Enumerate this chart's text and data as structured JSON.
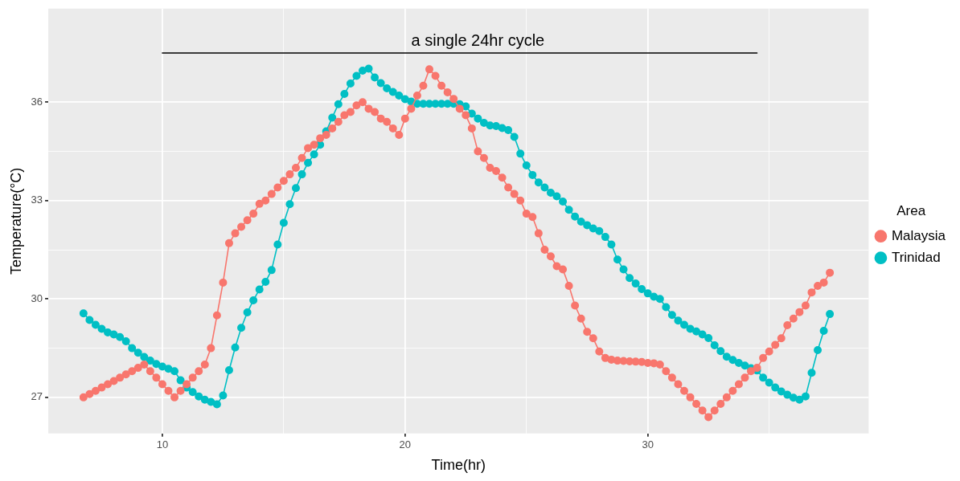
{
  "chart_data": {
    "type": "line",
    "xlabel": "Time(hr)",
    "ylabel": "Temperature(°C)",
    "legend_title": "Area",
    "legend": "right",
    "grid": true,
    "marker": "circle",
    "xlim": [
      5.3,
      39.1
    ],
    "ylim": [
      25.9,
      38.85
    ],
    "xticks": [
      10,
      {
        "value": 15,
        "label": null
      },
      20,
      {
        "value": 25,
        "label": null
      },
      30,
      {
        "value": 35,
        "label": null
      }
    ],
    "yticks": [
      27,
      {
        "value": 28.5,
        "label": null
      },
      30,
      {
        "value": 31.5,
        "label": null
      },
      33,
      {
        "value": 34.5,
        "label": null
      },
      36
    ],
    "x": [
      6.75,
      7,
      7.25,
      7.5,
      7.75,
      8,
      8.25,
      8.5,
      8.75,
      9,
      9.25,
      9.5,
      9.75,
      10,
      10.25,
      10.5,
      10.75,
      11,
      11.25,
      11.5,
      11.75,
      12,
      12.25,
      12.5,
      12.75,
      13,
      13.25,
      13.5,
      13.75,
      14,
      14.25,
      14.5,
      14.75,
      15,
      15.25,
      15.5,
      15.75,
      16,
      16.25,
      16.5,
      16.75,
      17,
      17.25,
      17.5,
      17.75,
      18,
      18.25,
      18.5,
      18.75,
      19,
      19.25,
      19.5,
      19.75,
      20,
      20.25,
      20.5,
      20.75,
      21,
      21.25,
      21.5,
      21.75,
      22,
      22.25,
      22.5,
      22.75,
      23,
      23.25,
      23.5,
      23.75,
      24,
      24.25,
      24.5,
      24.75,
      25,
      25.25,
      25.5,
      25.75,
      26,
      26.25,
      26.5,
      26.75,
      27,
      27.25,
      27.5,
      27.75,
      28,
      28.25,
      28.5,
      28.75,
      29,
      29.25,
      29.5,
      29.75,
      30,
      30.25,
      30.5,
      30.75,
      31,
      31.25,
      31.5,
      31.75,
      32,
      32.25,
      32.5,
      32.75,
      33,
      33.25,
      33.5,
      33.75,
      34,
      34.25,
      34.5,
      34.75,
      35,
      35.25,
      35.5,
      35.75,
      36,
      36.25,
      36.5,
      36.75,
      37,
      37.25,
      37.5
    ],
    "series": [
      {
        "name": "Malaysia",
        "color": "#f8766d",
        "values": [
          27.0,
          27.1,
          27.2,
          27.3,
          27.4,
          27.5,
          27.6,
          27.7,
          27.8,
          27.9,
          28.0,
          27.8,
          27.6,
          27.4,
          27.2,
          27.0,
          27.2,
          27.4,
          27.6,
          27.8,
          28.0,
          28.5,
          29.5,
          30.5,
          31.7,
          32.0,
          32.2,
          32.4,
          32.6,
          32.9,
          33.0,
          33.2,
          33.4,
          33.6,
          33.8,
          34.0,
          34.3,
          34.6,
          34.7,
          34.9,
          35.0,
          35.2,
          35.4,
          35.6,
          35.7,
          35.9,
          36.0,
          35.8,
          35.7,
          35.5,
          35.4,
          35.2,
          35.0,
          35.5,
          35.8,
          36.2,
          36.5,
          37.0,
          36.8,
          36.5,
          36.3,
          36.1,
          35.8,
          35.6,
          35.2,
          34.5,
          34.3,
          34.0,
          33.9,
          33.7,
          33.4,
          33.2,
          33.0,
          32.6,
          32.5,
          32.0,
          31.5,
          31.3,
          31.0,
          30.9,
          30.4,
          29.8,
          29.4,
          29.0,
          28.8,
          28.4,
          28.2,
          28.15,
          28.12,
          28.11,
          28.1,
          28.09,
          28.08,
          28.05,
          28.04,
          28.0,
          27.8,
          27.6,
          27.4,
          27.2,
          27.0,
          26.8,
          26.6,
          26.4,
          26.6,
          26.8,
          27.0,
          27.2,
          27.4,
          27.6,
          27.8,
          27.9,
          28.2,
          28.4,
          28.6,
          28.8,
          29.2,
          29.4,
          29.6,
          29.8,
          30.2,
          30.4,
          30.5,
          30.8
        ]
      },
      {
        "name": "Trinidad",
        "color": "#00bfc4",
        "values": [
          29.56,
          29.36,
          29.21,
          29.09,
          28.98,
          28.92,
          28.84,
          28.71,
          28.5,
          28.36,
          28.23,
          28.12,
          28.02,
          27.94,
          27.87,
          27.8,
          27.52,
          27.3,
          27.16,
          27.03,
          26.93,
          26.86,
          26.79,
          27.06,
          27.83,
          28.52,
          29.12,
          29.59,
          29.96,
          30.29,
          30.52,
          30.88,
          31.66,
          32.32,
          32.89,
          33.38,
          33.8,
          34.15,
          34.41,
          34.7,
          35.11,
          35.53,
          35.94,
          36.25,
          36.57,
          36.8,
          36.96,
          37.02,
          36.75,
          36.58,
          36.42,
          36.31,
          36.2,
          36.09,
          36.02,
          35.95,
          35.95,
          35.95,
          35.95,
          35.95,
          35.95,
          35.95,
          35.94,
          35.87,
          35.65,
          35.5,
          35.37,
          35.29,
          35.27,
          35.21,
          35.15,
          34.94,
          34.43,
          34.07,
          33.78,
          33.55,
          33.4,
          33.24,
          33.13,
          32.97,
          32.72,
          32.51,
          32.36,
          32.25,
          32.15,
          32.07,
          31.89,
          31.66,
          31.2,
          30.9,
          30.64,
          30.47,
          30.3,
          30.17,
          30.07,
          30.0,
          29.75,
          29.51,
          29.34,
          29.21,
          29.09,
          29.01,
          28.92,
          28.81,
          28.59,
          28.41,
          28.24,
          28.14,
          28.05,
          27.97,
          27.89,
          27.82,
          27.6,
          27.45,
          27.3,
          27.18,
          27.08,
          26.99,
          26.93,
          27.03,
          27.75,
          28.44,
          29.03,
          29.54
        ]
      },
      {
        "type": "line",
        "color": "#000000",
        "marker": "none",
        "x": [
          10,
          34.5
        ],
        "values": [
          37.5,
          37.5
        ]
      }
    ],
    "annotations": [
      {
        "text": "a single 24hr cycle",
        "x": 23,
        "y": 37.5
      }
    ]
  }
}
